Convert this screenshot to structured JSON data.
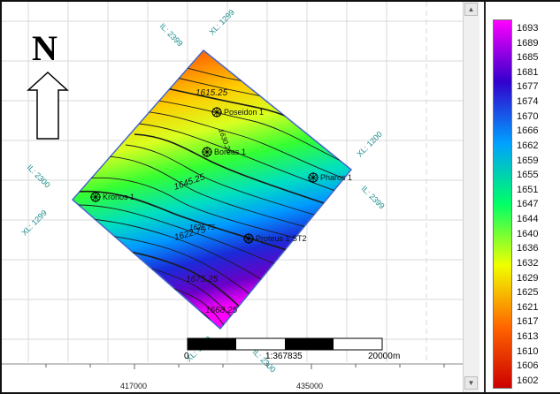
{
  "north_arrow": {
    "label": "N"
  },
  "crossline_labels": [
    "IL: 2399",
    "XL: 1299",
    "XL: 1200",
    "IL: 2399",
    "IL: 2300",
    "XL: 1299",
    "XL: 1200",
    "IL: 2300"
  ],
  "contour_labels": [
    "1615.25",
    "1645.25",
    "1630.25",
    "1675.25",
    "1668.25",
    "1622.75",
    "1625.75"
  ],
  "wells": [
    {
      "name": "Poseidon 1"
    },
    {
      "name": "Boreas 1"
    },
    {
      "name": "Pharos 1"
    },
    {
      "name": "Kronos 1"
    },
    {
      "name": "Proteus 1 ST2"
    }
  ],
  "scale_bar": {
    "start": "0",
    "ratio": "1:367835",
    "end": "20000",
    "unit": "m"
  },
  "x_axis_labels": [
    "417000",
    "435000"
  ],
  "colorbar": {
    "labels": [
      "1693",
      "1689",
      "1685",
      "1681",
      "1677",
      "1674",
      "1670",
      "1666",
      "1662",
      "1659",
      "1655",
      "1651",
      "1647",
      "1644",
      "1640",
      "1636",
      "1632",
      "1629",
      "1625",
      "1621",
      "1617",
      "1613",
      "1610",
      "1606",
      "1602"
    ],
    "colors": {
      "top": "#ff00ff",
      "high": "#3300cc",
      "mid_high": "#00a0ff",
      "mid": "#00ff66",
      "mid_low": "#f0ff00",
      "low": "#ff6600",
      "bottom": "#cc0000"
    }
  }
}
